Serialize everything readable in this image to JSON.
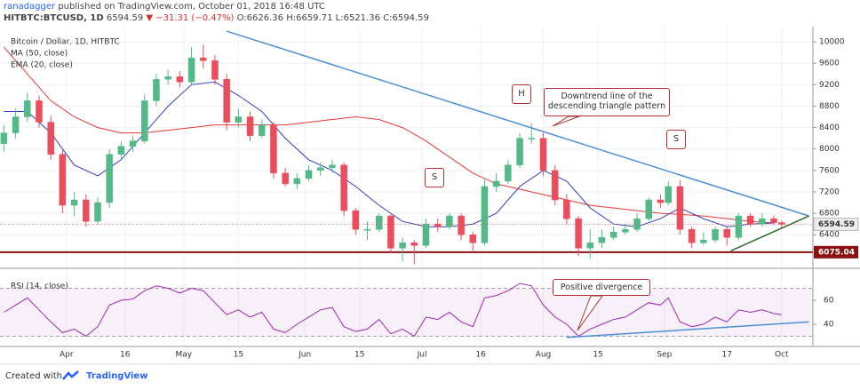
{
  "header": {
    "author": "ranadagger",
    "published": "published on TradingView.com, October 01, 2018 16:48 UTC",
    "symbol": "HITBTC:BTCUSD, 1D",
    "change": "▼ −31.31 (−0.47%)",
    "ohlc_labels": [
      "O:",
      "H:",
      "L:",
      "C:"
    ]
  },
  "footer": {
    "created": "Created with",
    "brand": "TradingView"
  },
  "chart_data": [
    {
      "type": "candlestick",
      "title": "Bitcoin / Dollar, 1D, HITBTC",
      "x": [
        "2018-03-16",
        "2018-03-19",
        "2018-03-22",
        "2018-03-25",
        "2018-03-28",
        "2018-03-31",
        "2018-04-03",
        "2018-04-06",
        "2018-04-09",
        "2018-04-12",
        "2018-04-15",
        "2018-04-18",
        "2018-04-21",
        "2018-04-24",
        "2018-04-27",
        "2018-04-30",
        "2018-05-03",
        "2018-05-06",
        "2018-05-09",
        "2018-05-12",
        "2018-05-15",
        "2018-05-18",
        "2018-05-21",
        "2018-05-24",
        "2018-05-27",
        "2018-05-30",
        "2018-06-02",
        "2018-06-05",
        "2018-06-08",
        "2018-06-11",
        "2018-06-14",
        "2018-06-17",
        "2018-06-20",
        "2018-06-23",
        "2018-06-26",
        "2018-06-29",
        "2018-07-02",
        "2018-07-05",
        "2018-07-08",
        "2018-07-11",
        "2018-07-14",
        "2018-07-17",
        "2018-07-20",
        "2018-07-23",
        "2018-07-26",
        "2018-07-29",
        "2018-08-01",
        "2018-08-04",
        "2018-08-07",
        "2018-08-10",
        "2018-08-13",
        "2018-08-16",
        "2018-08-19",
        "2018-08-22",
        "2018-08-25",
        "2018-08-28",
        "2018-08-31",
        "2018-09-02",
        "2018-09-05",
        "2018-09-08",
        "2018-09-11",
        "2018-09-14",
        "2018-09-17",
        "2018-09-20",
        "2018-09-23",
        "2018-09-26",
        "2018-09-29",
        "2018-10-01"
      ],
      "open": [
        8100,
        8300,
        8600,
        8900,
        8500,
        7900,
        6950,
        7050,
        6650,
        7000,
        7900,
        8050,
        8150,
        8900,
        9300,
        9350,
        9250,
        9700,
        9650,
        9300,
        8500,
        8600,
        8250,
        8450,
        7550,
        7350,
        7450,
        7600,
        7650,
        7700,
        6850,
        6500,
        6500,
        6750,
        6150,
        6250,
        6200,
        6600,
        6550,
        6750,
        6400,
        6250,
        7300,
        7400,
        7700,
        8200,
        8200,
        7600,
        7050,
        6700,
        6150,
        6250,
        6350,
        6450,
        6500,
        6700,
        7050,
        7000,
        7300,
        6500,
        6250,
        6300,
        6500,
        6350,
        6750,
        6600,
        6700,
        6626.36
      ],
      "high": [
        8450,
        8750,
        9050,
        9000,
        8620,
        8000,
        7200,
        7150,
        7100,
        8000,
        8150,
        8250,
        9020,
        9400,
        9480,
        9450,
        9900,
        9950,
        9750,
        9400,
        8750,
        8700,
        8550,
        8500,
        7650,
        7550,
        7700,
        7750,
        7800,
        7750,
        6900,
        6650,
        6800,
        6780,
        6350,
        6300,
        6700,
        6700,
        6800,
        6800,
        6450,
        7450,
        7550,
        7800,
        8300,
        8480,
        8300,
        7700,
        7150,
        6750,
        6500,
        6500,
        6550,
        6600,
        6800,
        7100,
        7150,
        7400,
        7420,
        6550,
        6450,
        6550,
        6550,
        6800,
        6800,
        6800,
        6760,
        6659.71
      ],
      "low": [
        7950,
        8200,
        8500,
        8400,
        7800,
        6800,
        6750,
        6550,
        6600,
        6900,
        7800,
        7950,
        8100,
        8800,
        9200,
        9150,
        9200,
        9500,
        9200,
        8350,
        8400,
        8150,
        8200,
        7450,
        7300,
        7250,
        7400,
        7500,
        7550,
        6750,
        6400,
        6300,
        6450,
        6050,
        5900,
        5850,
        6150,
        6450,
        6500,
        6300,
        6100,
        6200,
        7200,
        7350,
        7650,
        8100,
        7500,
        6950,
        6600,
        6000,
        5950,
        6150,
        6300,
        6400,
        6450,
        6650,
        6900,
        6950,
        6400,
        6150,
        6200,
        6250,
        6200,
        6300,
        6550,
        6550,
        6580,
        6521.36
      ],
      "close": [
        8300,
        8600,
        8900,
        8500,
        7900,
        6950,
        7050,
        6650,
        7000,
        7900,
        8050,
        8150,
        8900,
        9300,
        9350,
        9250,
        9700,
        9650,
        9300,
        8500,
        8600,
        8250,
        8450,
        7550,
        7350,
        7450,
        7600,
        7650,
        7700,
        6850,
        6500,
        6500,
        6750,
        6150,
        6250,
        6200,
        6600,
        6550,
        6750,
        6400,
        6250,
        7300,
        7400,
        7700,
        8200,
        8200,
        7600,
        7050,
        6700,
        6150,
        6250,
        6350,
        6450,
        6500,
        6700,
        7050,
        7000,
        7300,
        6500,
        6250,
        6300,
        6500,
        6350,
        6750,
        6600,
        6700,
        6626.36,
        6594.59
      ],
      "up_color": "#53b987",
      "down_color": "#eb4d5c",
      "xlim": [
        "2018-03-15",
        "2018-10-09"
      ],
      "ylim": [
        5890,
        10200
      ],
      "yticks": [
        6400,
        6800,
        7200,
        7600,
        8000,
        8400,
        8800,
        9200,
        9600,
        10000
      ],
      "lines_x": [
        "2018-03-16",
        "2018-03-22",
        "2018-03-28",
        "2018-04-03",
        "2018-04-09",
        "2018-04-15",
        "2018-04-21",
        "2018-04-27",
        "2018-05-03",
        "2018-05-09",
        "2018-05-15",
        "2018-05-21",
        "2018-05-27",
        "2018-06-02",
        "2018-06-08",
        "2018-06-14",
        "2018-06-20",
        "2018-06-26",
        "2018-07-02",
        "2018-07-08",
        "2018-07-14",
        "2018-07-20",
        "2018-07-26",
        "2018-08-01",
        "2018-08-07",
        "2018-08-13",
        "2018-08-19",
        "2018-08-25",
        "2018-08-31",
        "2018-09-05",
        "2018-09-11",
        "2018-09-17",
        "2018-09-23",
        "2018-09-29"
      ],
      "lines": [
        {
          "name": "MA (50, close)",
          "color": "#e53935",
          "values": [
            9900,
            9400,
            8900,
            8600,
            8400,
            8300,
            8300,
            8350,
            8400,
            8450,
            8450,
            8450,
            8450,
            8500,
            8550,
            8600,
            8550,
            8400,
            8150,
            7850,
            7550,
            7350,
            7250,
            7150,
            7050,
            6950,
            6900,
            6850,
            6800,
            6780,
            6750,
            6700,
            6650,
            6620
          ]
        },
        {
          "name": "EMA (20, close)",
          "color": "#2f3fc0",
          "values": [
            8700,
            8700,
            8300,
            7700,
            7500,
            7800,
            8300,
            8800,
            9200,
            9250,
            9000,
            8700,
            8200,
            7800,
            7600,
            7300,
            6950,
            6650,
            6550,
            6550,
            6600,
            6800,
            7300,
            7600,
            7400,
            6900,
            6600,
            6550,
            6700,
            6900,
            6700,
            6550,
            6600,
            6620
          ]
        }
      ],
      "hline": {
        "value": 6075.04,
        "color": "#8b1010"
      },
      "trendlines": [
        {
          "x": [
            "2018-05-12",
            "2018-10-08"
          ],
          "y": [
            10199,
            6750
          ],
          "color": "#4a8fd6"
        },
        {
          "x": [
            "2018-09-18",
            "2018-10-08"
          ],
          "y": [
            6100,
            6750
          ],
          "color": "#2e6b2e"
        }
      ],
      "annotations": [
        "H",
        "S",
        "S",
        "Downtrend line of the descending triangle pattern"
      ]
    },
    {
      "type": "line",
      "title": "RSI (14, close)",
      "values": [
        50,
        56,
        62,
        52,
        42,
        33,
        36,
        30,
        38,
        56,
        60,
        61,
        68,
        72,
        70,
        66,
        70,
        68,
        58,
        48,
        52,
        46,
        50,
        36,
        33,
        40,
        46,
        52,
        54,
        38,
        34,
        36,
        44,
        32,
        36,
        30,
        46,
        44,
        50,
        42,
        38,
        62,
        64,
        68,
        74,
        72,
        56,
        46,
        40,
        30,
        36,
        40,
        44,
        46,
        52,
        58,
        56,
        62,
        42,
        38,
        40,
        46,
        42,
        52,
        50,
        52,
        49,
        48
      ],
      "color": "#9c27b0",
      "ylim": [
        23,
        78.5
      ],
      "yticks": [
        40,
        60
      ],
      "bands": [
        30,
        70
      ],
      "xticks": [
        {
          "value": "2018-04-01",
          "label": "Apr"
        },
        {
          "value": "2018-04-16",
          "label": "16"
        },
        {
          "value": "2018-05-01",
          "label": "May"
        },
        {
          "value": "2018-05-15",
          "label": "15"
        },
        {
          "value": "2018-06-01",
          "label": "Jun"
        },
        {
          "value": "2018-06-15",
          "label": "15"
        },
        {
          "value": "2018-07-01",
          "label": "Jul"
        },
        {
          "value": "2018-07-16",
          "label": "16"
        },
        {
          "value": "2018-08-01",
          "label": "Aug"
        },
        {
          "value": "2018-08-15",
          "label": "15"
        },
        {
          "value": "2018-09-01",
          "label": "Sep"
        },
        {
          "value": "2018-09-17",
          "label": "17"
        },
        {
          "value": "2018-10-01",
          "label": "Oct"
        }
      ],
      "trendline": {
        "x": [
          "2018-08-07",
          "2018-10-08"
        ],
        "y": [
          29,
          42
        ],
        "color": "#4a8fd6"
      },
      "annotation": "Positive divergence"
    }
  ]
}
